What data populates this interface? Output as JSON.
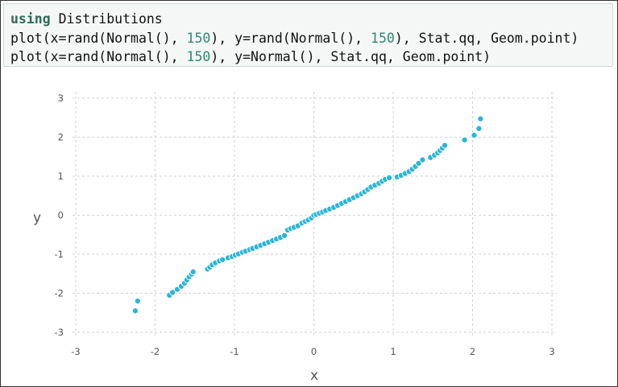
{
  "code": {
    "lines": [
      [
        {
          "t": "using",
          "c": "kw"
        },
        {
          "t": " Distributions",
          "c": ""
        }
      ],
      [
        {
          "t": "plot(x=rand(Normal(), ",
          "c": ""
        },
        {
          "t": "150",
          "c": "num"
        },
        {
          "t": "), y=rand(Normal(), ",
          "c": ""
        },
        {
          "t": "150",
          "c": "num"
        },
        {
          "t": "), Stat.qq, Geom.point)",
          "c": ""
        }
      ],
      [
        {
          "t": "plot(x=rand(Normal(), ",
          "c": ""
        },
        {
          "t": "150",
          "c": "num"
        },
        {
          "t": "), y=Normal(), Stat.qq, Geom.point)",
          "c": ""
        }
      ]
    ]
  },
  "chart_data": {
    "type": "scatter",
    "xlabel": "x",
    "ylabel": "y",
    "xlim": [
      -3,
      3
    ],
    "ylim": [
      -3,
      3
    ],
    "xticks": [
      "-3",
      "-2",
      "-1",
      "0",
      "1",
      "2",
      "3"
    ],
    "yticks": [
      "3",
      "2",
      "1",
      "0",
      "-1",
      "-2",
      "-3"
    ],
    "grid": true,
    "point_color": "#2bb5d8",
    "points": [
      [
        -2.25,
        -2.45
      ],
      [
        -2.22,
        -2.2
      ],
      [
        -1.82,
        -2.05
      ],
      [
        -1.78,
        -1.98
      ],
      [
        -1.72,
        -1.9
      ],
      [
        -1.67,
        -1.82
      ],
      [
        -1.63,
        -1.74
      ],
      [
        -1.6,
        -1.66
      ],
      [
        -1.57,
        -1.58
      ],
      [
        -1.54,
        -1.51
      ],
      [
        -1.52,
        -1.45
      ],
      [
        -1.34,
        -1.38
      ],
      [
        -1.31,
        -1.33
      ],
      [
        -1.28,
        -1.27
      ],
      [
        -1.24,
        -1.22
      ],
      [
        -1.19,
        -1.17
      ],
      [
        -1.15,
        -1.14
      ],
      [
        -1.08,
        -1.09
      ],
      [
        -1.03,
        -1.06
      ],
      [
        -0.99,
        -1.02
      ],
      [
        -0.95,
        -0.99
      ],
      [
        -0.9,
        -0.95
      ],
      [
        -0.86,
        -0.92
      ],
      [
        -0.81,
        -0.88
      ],
      [
        -0.77,
        -0.85
      ],
      [
        -0.72,
        -0.81
      ],
      [
        -0.67,
        -0.77
      ],
      [
        -0.62,
        -0.73
      ],
      [
        -0.57,
        -0.69
      ],
      [
        -0.52,
        -0.65
      ],
      [
        -0.47,
        -0.61
      ],
      [
        -0.42,
        -0.57
      ],
      [
        -0.37,
        -0.52
      ],
      [
        -0.33,
        -0.38
      ],
      [
        -0.29,
        -0.34
      ],
      [
        -0.25,
        -0.31
      ],
      [
        -0.2,
        -0.27
      ],
      [
        -0.15,
        -0.2
      ],
      [
        -0.11,
        -0.16
      ],
      [
        -0.07,
        -0.12
      ],
      [
        -0.03,
        -0.07
      ],
      [
        0.0,
        0.0
      ],
      [
        0.03,
        0.02
      ],
      [
        0.07,
        0.05
      ],
      [
        0.11,
        0.08
      ],
      [
        0.15,
        0.12
      ],
      [
        0.2,
        0.16
      ],
      [
        0.25,
        0.2
      ],
      [
        0.3,
        0.25
      ],
      [
        0.35,
        0.3
      ],
      [
        0.4,
        0.35
      ],
      [
        0.45,
        0.4
      ],
      [
        0.5,
        0.45
      ],
      [
        0.55,
        0.5
      ],
      [
        0.6,
        0.55
      ],
      [
        0.64,
        0.6
      ],
      [
        0.68,
        0.66
      ],
      [
        0.72,
        0.72
      ],
      [
        0.77,
        0.77
      ],
      [
        0.82,
        0.82
      ],
      [
        0.86,
        0.87
      ],
      [
        0.9,
        0.92
      ],
      [
        0.95,
        0.96
      ],
      [
        1.05,
        0.98
      ],
      [
        1.1,
        1.02
      ],
      [
        1.15,
        1.07
      ],
      [
        1.2,
        1.12
      ],
      [
        1.24,
        1.18
      ],
      [
        1.28,
        1.25
      ],
      [
        1.32,
        1.33
      ],
      [
        1.37,
        1.42
      ],
      [
        1.47,
        1.48
      ],
      [
        1.52,
        1.54
      ],
      [
        1.56,
        1.6
      ],
      [
        1.59,
        1.66
      ],
      [
        1.62,
        1.72
      ],
      [
        1.65,
        1.79
      ],
      [
        1.9,
        1.93
      ],
      [
        2.02,
        2.05
      ],
      [
        2.08,
        2.22
      ],
      [
        2.1,
        2.47
      ]
    ]
  }
}
